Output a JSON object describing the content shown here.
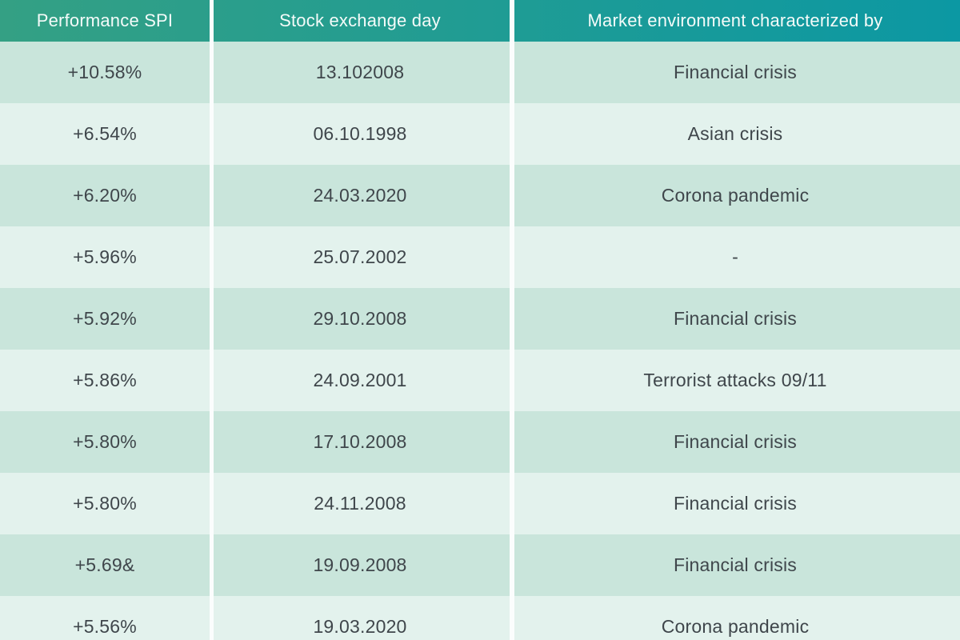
{
  "chart_data": {
    "type": "table",
    "columns": [
      "Performance SPI",
      "Stock exchange day",
      "Market environment characterized by"
    ],
    "rows": [
      [
        "+10.58%",
        "13.102008",
        "Financial crisis"
      ],
      [
        "+6.54%",
        "06.10.1998",
        "Asian crisis"
      ],
      [
        "+6.20%",
        "24.03.2020",
        "Corona pandemic"
      ],
      [
        "+5.96%",
        "25.07.2002",
        "-"
      ],
      [
        "+5.92%",
        "29.10.2008",
        "Financial crisis"
      ],
      [
        "+5.86%",
        "24.09.2001",
        "Terrorist attacks 09/11"
      ],
      [
        "+5.80%",
        "17.10.2008",
        "Financial crisis"
      ],
      [
        "+5.80%",
        "24.11.2008",
        "Financial crisis"
      ],
      [
        "+5.69&",
        "19.09.2008",
        "Financial crisis"
      ],
      [
        "+5.56%",
        "19.03.2020",
        "Corona pandemic"
      ]
    ]
  },
  "colors": {
    "header_gradient_start": "#34a084",
    "header_gradient_end": "#0c98a3",
    "row_dark": "#c9e5db",
    "row_light": "#e3f2ed",
    "divider": "#fbfdfd",
    "cell_text": "#3f464b",
    "header_text": "#f4fbf9"
  }
}
